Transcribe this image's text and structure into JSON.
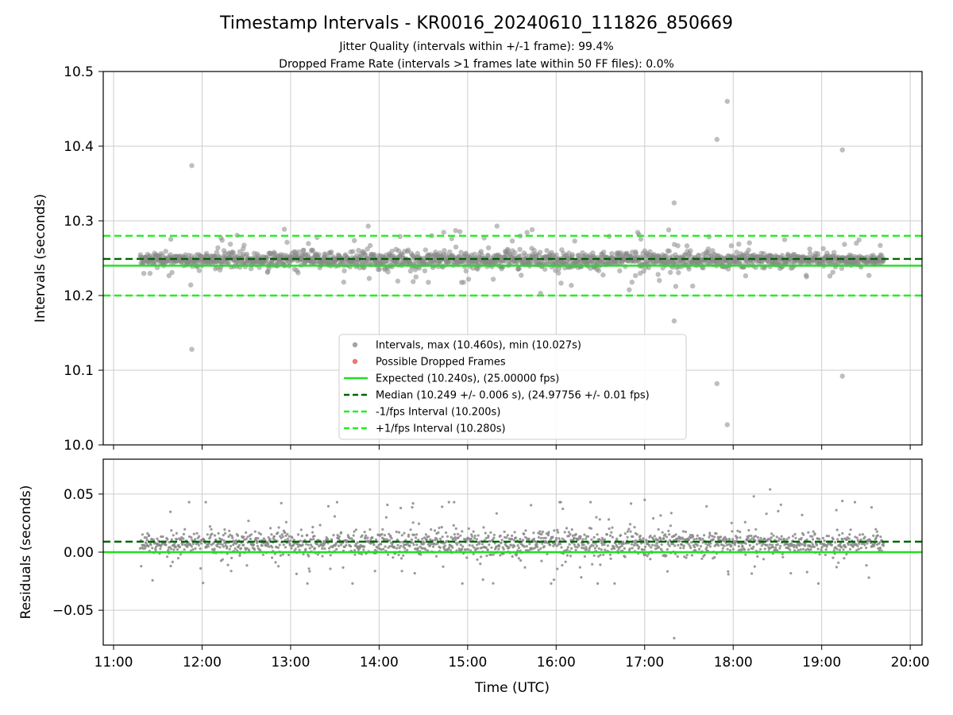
{
  "chart_data": {
    "type": "scatter",
    "title": "Timestamp Intervals - KR0016_20240610_111826_850669",
    "subtitle_lines": [
      "Jitter Quality (intervals within +/-1 frame): 99.4%",
      "Dropped Frame Rate (intervals >1 frames late within 50 FF files): 0.0%"
    ],
    "xlabel": "Time (UTC)",
    "x_tick_labels": [
      "11:00",
      "12:00",
      "13:00",
      "14:00",
      "15:00",
      "16:00",
      "17:00",
      "18:00",
      "19:00",
      "20:00"
    ],
    "xlim": [
      "10:53",
      "20:08"
    ],
    "data_x_range": [
      "11:18",
      "19:42"
    ],
    "grid": true,
    "panels": [
      {
        "name": "intervals",
        "ylabel": "Intervals (seconds)",
        "ylim": [
          10.0,
          10.5
        ],
        "y_ticks": [
          "10.0",
          "10.1",
          "10.2",
          "10.3",
          "10.4",
          "10.5"
        ],
        "y_tick_values": [
          10.0,
          10.1,
          10.2,
          10.3,
          10.4,
          10.5
        ],
        "hlines": [
          {
            "y": 10.24,
            "color": "#22dd22",
            "style": "solid"
          },
          {
            "y": 10.249,
            "color": "#006400",
            "style": "dashed"
          },
          {
            "y": 10.2,
            "color": "#22ee22",
            "style": "dashed"
          },
          {
            "y": 10.28,
            "color": "#22ee22",
            "style": "dashed"
          }
        ],
        "outliers": [
          {
            "x": "11:53",
            "y": 10.374
          },
          {
            "x": "11:53",
            "y": 10.128
          },
          {
            "x": "17:20",
            "y": 10.324
          },
          {
            "x": "17:20",
            "y": 10.166
          },
          {
            "x": "17:49",
            "y": 10.409
          },
          {
            "x": "17:49",
            "y": 10.082
          },
          {
            "x": "17:56",
            "y": 10.46
          },
          {
            "x": "17:56",
            "y": 10.027
          },
          {
            "x": "19:14",
            "y": 10.395
          },
          {
            "x": "19:14",
            "y": 10.092
          }
        ],
        "bulk": {
          "center": 10.248,
          "typical_spread": 0.006,
          "max_excursion": 0.045
        }
      },
      {
        "name": "residuals",
        "ylabel": "Residuals (seconds)",
        "ylim": [
          -0.08,
          0.08
        ],
        "y_ticks": [
          "0.05",
          "0.00",
          "−0.05"
        ],
        "y_tick_values": [
          0.05,
          0.0,
          -0.05
        ],
        "hlines": [
          {
            "y": 0.0,
            "color": "#22dd22",
            "style": "solid"
          },
          {
            "y": 0.009,
            "color": "#006400",
            "style": "dashed"
          }
        ],
        "outliers": [
          {
            "x": "17:20",
            "y": -0.074
          },
          {
            "x": "18:25",
            "y": 0.054
          },
          {
            "x": "18:14",
            "y": 0.048
          },
          {
            "x": "17:00",
            "y": 0.045
          },
          {
            "x": "19:14",
            "y": 0.044
          },
          {
            "x": "14:23",
            "y": 0.042
          }
        ],
        "bulk": {
          "center": 0.008,
          "typical_spread": 0.006,
          "max_excursion": 0.035
        }
      }
    ],
    "legend": {
      "placement": "lower-center",
      "entries": [
        {
          "label": "Intervals, max (10.460s), min (10.027s)",
          "marker": "dot",
          "color": "#999999"
        },
        {
          "label": "Possible Dropped Frames",
          "marker": "dot",
          "color": "#ee6666"
        },
        {
          "label": "Expected (10.240s), (25.00000 fps)",
          "marker": "line",
          "style": "solid",
          "color": "#22dd22"
        },
        {
          "label": "Median (10.249 +/- 0.006 s), (24.97756 +/- 0.01 fps)",
          "marker": "line",
          "style": "dashed",
          "color": "#006400"
        },
        {
          "label": "-1/fps Interval (10.200s)",
          "marker": "line",
          "style": "dashed",
          "color": "#22ee22"
        },
        {
          "label": "+1/fps Interval (10.280s)",
          "marker": "line",
          "style": "dashed",
          "color": "#22ee22"
        }
      ]
    },
    "colors": {
      "points": "#888888",
      "expected": "#22dd22",
      "median": "#006400",
      "bound": "#22ee22",
      "grid": "#cccccc"
    }
  }
}
